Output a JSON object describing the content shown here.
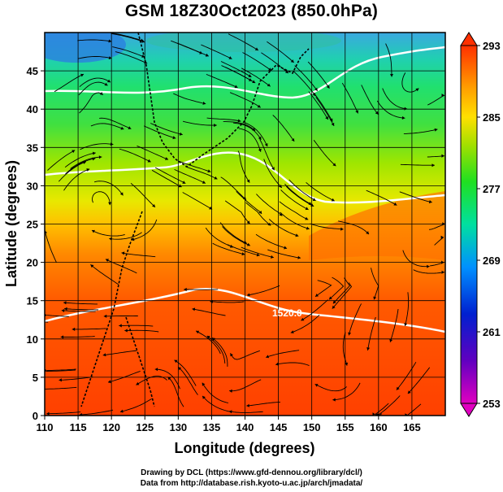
{
  "title": "GSM 18Z30Oct2023 (850.0hPa)",
  "x_axis": {
    "label": "Longitude (degrees)",
    "range": [
      110,
      170
    ],
    "ticks": [
      "110",
      "115",
      "120",
      "125",
      "130",
      "135",
      "140",
      "145",
      "150",
      "155",
      "160",
      "165"
    ]
  },
  "y_axis": {
    "label": "Latitude  (degrees)",
    "range": [
      0,
      50
    ],
    "ticks": [
      "0",
      "5",
      "10",
      "15",
      "20",
      "25",
      "30",
      "35",
      "40",
      "45"
    ]
  },
  "colorbar": {
    "ticks": [
      "293",
      "285",
      "277",
      "269",
      "261",
      "253"
    ],
    "range": [
      253,
      293
    ]
  },
  "contour_label": "1520.0",
  "credits": {
    "line1": "Drawing by DCL (https://www.gfd-dennou.org/library/dcl/)",
    "line2": "Data from http://database.rish.kyoto-u.ac.jp/arch/jmadata/"
  },
  "colors": {
    "warm": "#ff3a00",
    "mid": "#ffdd00",
    "cool": "#00ff00",
    "cold": "#0088ff",
    "grid": "#000000",
    "contour": "#ffffff"
  }
}
